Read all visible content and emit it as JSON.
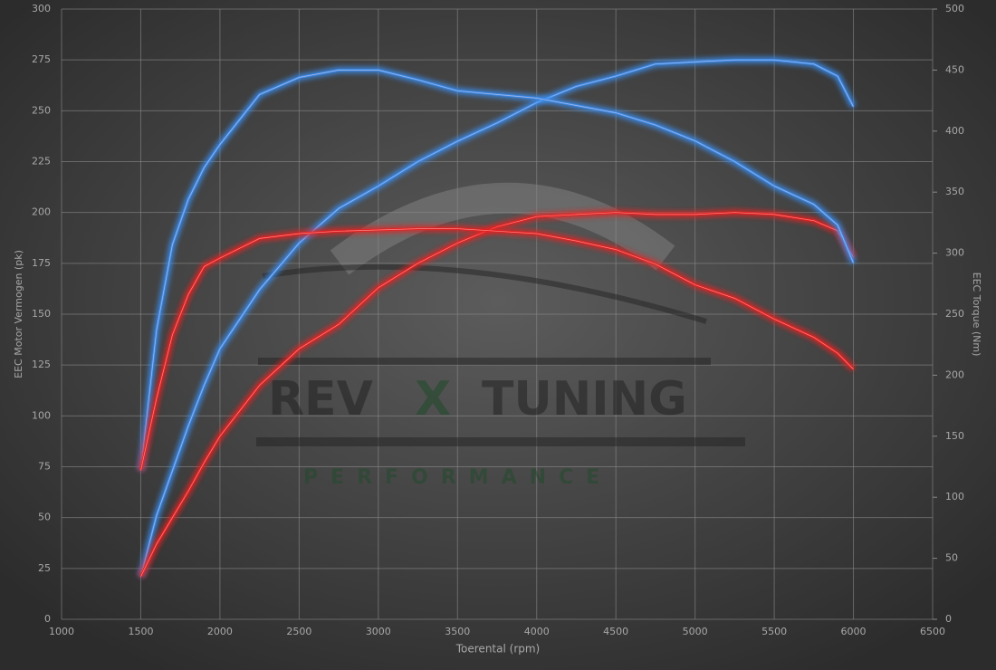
{
  "chart_data": {
    "type": "line",
    "xlabel": "Toerental (rpm)",
    "ylabel": "EEC Motor Vermogen (pk)",
    "y2label": "EEC Torque (Nm)",
    "watermark": [
      "REV",
      "X",
      "TUNING",
      "PERFORMANCE"
    ],
    "x": [
      1500,
      1600,
      1700,
      1800,
      1900,
      2000,
      2250,
      2500,
      2750,
      3000,
      3250,
      3500,
      3750,
      4000,
      4250,
      4500,
      4750,
      5000,
      5250,
      5500,
      5750,
      5900,
      6000
    ],
    "xlim": [
      1000,
      6500
    ],
    "xticks": [
      1000,
      1500,
      2000,
      2500,
      3000,
      3500,
      4000,
      4500,
      5000,
      5500,
      6000,
      6500
    ],
    "ylim": [
      0,
      300
    ],
    "yticks": [
      0,
      25,
      50,
      75,
      100,
      125,
      150,
      175,
      200,
      225,
      250,
      275,
      300
    ],
    "y2lim": [
      0,
      500
    ],
    "y2ticks": [
      0,
      50,
      100,
      150,
      200,
      250,
      300,
      350,
      400,
      450,
      500
    ],
    "grid": true,
    "series": [
      {
        "color": "#3a8ef0",
        "values": [
          21,
          51,
          73,
          95,
          115,
          133,
          162,
          185,
          202,
          213,
          225,
          235,
          244,
          254,
          262,
          267,
          273,
          274,
          275,
          275,
          273,
          267,
          252
        ]
      },
      {
        "color": "#e82020",
        "values": [
          21,
          37,
          50,
          63,
          77,
          90,
          115,
          133,
          145,
          163,
          175,
          185,
          193,
          198,
          199,
          200,
          199,
          199,
          200,
          199,
          196,
          191,
          178
        ]
      },
      {
        "color": "#3a8ef0",
        "axis": "y2",
        "values": [
          122,
          237,
          307,
          344,
          370,
          389,
          430,
          444,
          450,
          450,
          442,
          433,
          430,
          427,
          421,
          415,
          405,
          392,
          375,
          355,
          340,
          323,
          292
        ]
      },
      {
        "color": "#e82020",
        "axis": "y2",
        "values": [
          122,
          181,
          233,
          266,
          289,
          296,
          312,
          316,
          318,
          319,
          320,
          320,
          318,
          316,
          310,
          303,
          291,
          274,
          263,
          246,
          231,
          218,
          205
        ]
      }
    ]
  }
}
